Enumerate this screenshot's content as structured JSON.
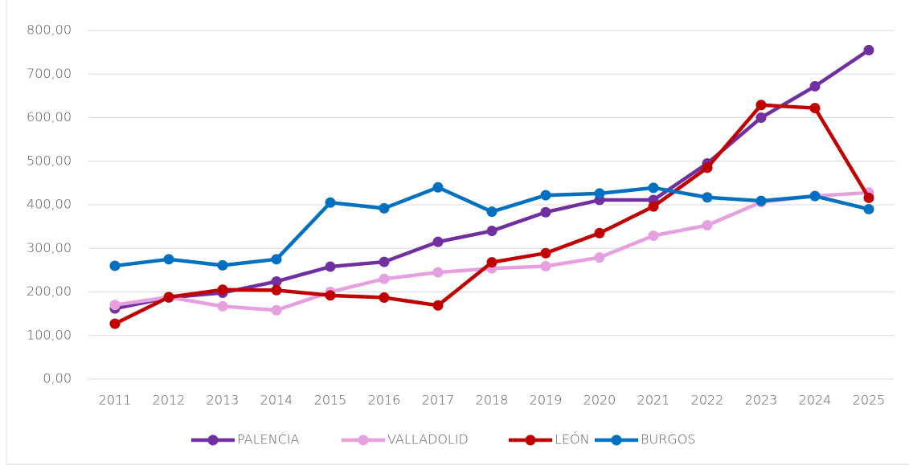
{
  "chart_data": {
    "type": "line",
    "categories": [
      "2011",
      "2012",
      "2013",
      "2014",
      "2015",
      "2016",
      "2017",
      "2018",
      "2019",
      "2020",
      "2021",
      "2022",
      "2023",
      "2024",
      "2025"
    ],
    "series": [
      {
        "name": "PALENCIA",
        "color": "#7030a0",
        "values": [
          162,
          187,
          198,
          224,
          258,
          269,
          315,
          340,
          383,
          411,
          411,
          495,
          600,
          672,
          755
        ]
      },
      {
        "name": "VALLADOLID",
        "color": "#e6a0e0",
        "values": [
          170,
          188,
          167,
          158,
          200,
          230,
          245,
          254,
          259,
          279,
          329,
          353,
          406,
          420,
          428
        ]
      },
      {
        "name": "LEÓN",
        "color": "#c00000",
        "values": [
          127,
          188,
          205,
          204,
          192,
          187,
          169,
          268,
          289,
          335,
          396,
          485,
          629,
          622,
          416
        ]
      },
      {
        "name": "BURGOS",
        "color": "#0070c0",
        "values": [
          260,
          275,
          261,
          275,
          405,
          392,
          440,
          384,
          422,
          426,
          439,
          417,
          409,
          420,
          390
        ]
      }
    ],
    "ylim": [
      0,
      800
    ],
    "yticks": [
      {
        "value": 0,
        "label": "0,00"
      },
      {
        "value": 100,
        "label": "100,00"
      },
      {
        "value": 200,
        "label": "200,00"
      },
      {
        "value": 300,
        "label": "300,00"
      },
      {
        "value": 400,
        "label": "400,00"
      },
      {
        "value": 500,
        "label": "500,00"
      },
      {
        "value": 600,
        "label": "600,00"
      },
      {
        "value": 700,
        "label": "700,00"
      },
      {
        "value": 800,
        "label": "800,00"
      }
    ],
    "grid": true,
    "legend": "bottom"
  }
}
